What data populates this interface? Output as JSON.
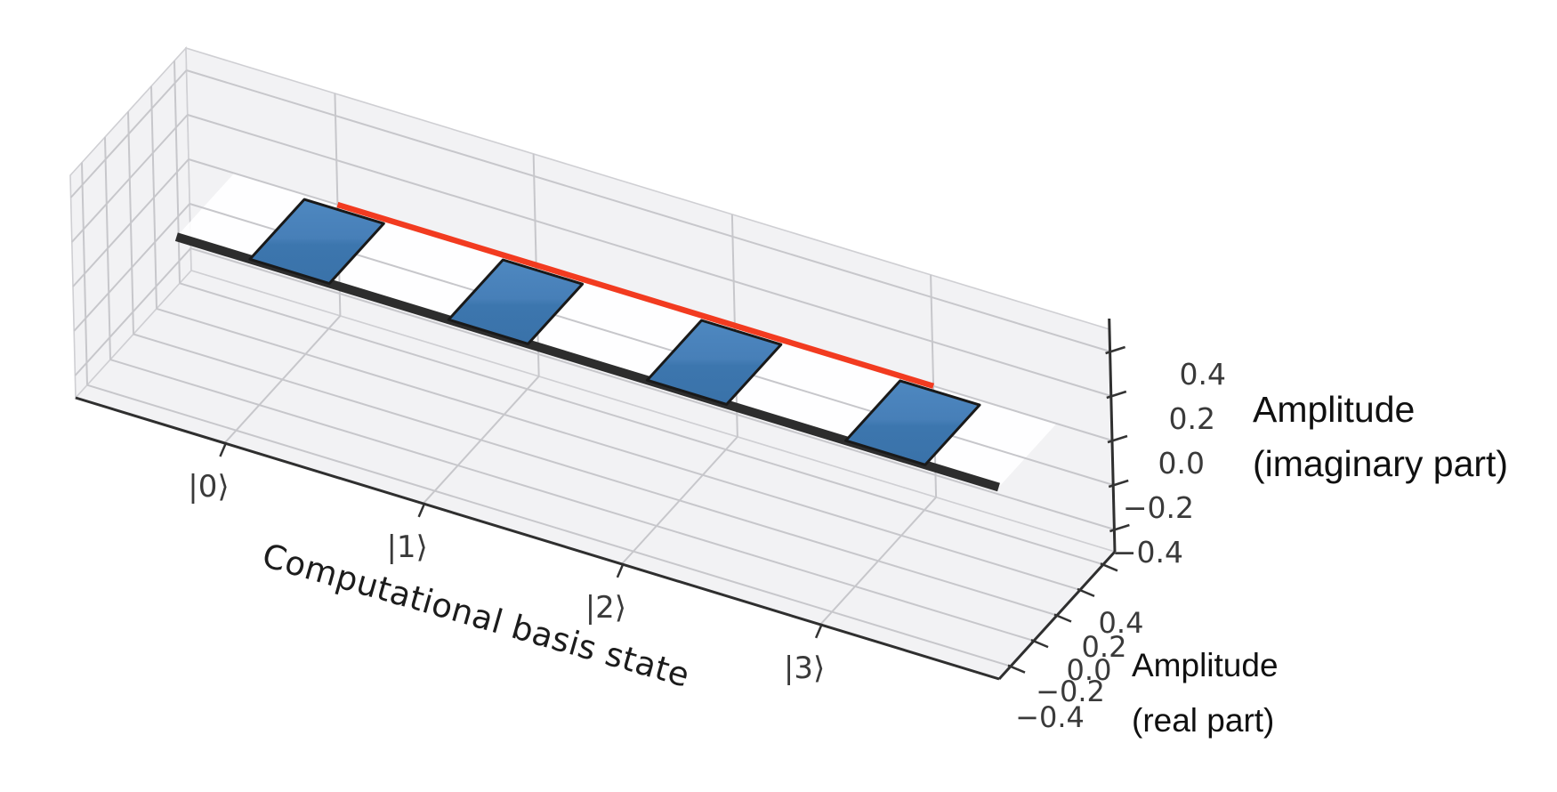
{
  "chart_data": {
    "type": "bar3d",
    "title": "",
    "xlabel": "Computational basis state",
    "ylabel": "Amplitude\n(real part)",
    "zlabel": "Amplitude\n(imaginary part)",
    "basis_states": [
      "|0⟩",
      "|1⟩",
      "|2⟩",
      "|3⟩"
    ],
    "amplitude_real": [
      0.5,
      0.5,
      0.5,
      0.5
    ],
    "amplitude_imag": [
      0.0,
      0.0,
      0.0,
      0.0
    ],
    "x_ticks": [
      0,
      1,
      2,
      3
    ],
    "y_ticks": [
      0.4,
      0.2,
      0.0,
      -0.2,
      -0.4
    ],
    "y_tick_labels": [
      "0.4",
      "0.2",
      "0.0",
      "−0.2",
      "−0.4"
    ],
    "z_ticks": [
      0.4,
      0.2,
      0.0,
      -0.2,
      -0.4
    ],
    "z_tick_labels": [
      "0.4",
      "0.2",
      "0.0",
      "−0.2",
      "−0.4"
    ],
    "xlim": [
      -0.75,
      3.9
    ],
    "ylim": [
      -0.5,
      0.5
    ],
    "zlim": [
      -0.5,
      0.5
    ],
    "bar_x_offset": [
      -0.15,
      0.25
    ],
    "bar_depth_scale": 0.94,
    "zero_line_span": [
      -0.52,
      3.62
    ],
    "amplitude_line_span": [
      0,
      3
    ],
    "grid": true,
    "legend": "none",
    "colors": {
      "bar_fill_light": "#4e88c0",
      "bar_fill": "#4280b8",
      "bar_fill_dark": "#3a72a9",
      "bar_edge": "#191919",
      "zero_line": "#2d2d2d",
      "amplitude_line": "#f23b20",
      "pane": "#f2f2f4",
      "pane_edge": "#cfcfd3",
      "grid_line": "#c7c7cb",
      "spine": "#2f2f2f",
      "plane_fill": "#ffffff",
      "tick_label": "#3a3a3a",
      "axis_label": "#101010"
    }
  }
}
